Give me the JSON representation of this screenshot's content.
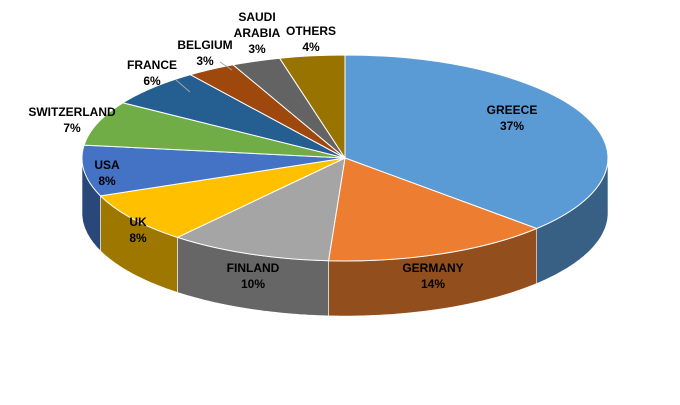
{
  "chart_data": {
    "type": "pie3d",
    "categories": [
      "GREECE",
      "GERMANY",
      "FINLAND",
      "UK",
      "USA",
      "SWITZERLAND",
      "FRANCE",
      "BELGIUM",
      "SAUDI ARABIA",
      "OTHERS"
    ],
    "values": [
      37,
      14,
      10,
      8,
      8,
      7,
      6,
      3,
      3,
      4
    ],
    "value_labels": [
      "37%",
      "14%",
      "10%",
      "8%",
      "8%",
      "7%",
      "6%",
      "3%",
      "3%",
      "4%"
    ],
    "colors": [
      "#5b9bd5",
      "#ed7d31",
      "#a5a5a5",
      "#ffc000",
      "#4472c4",
      "#70ad47",
      "#255e91",
      "#9e480e",
      "#636363",
      "#997300"
    ]
  }
}
